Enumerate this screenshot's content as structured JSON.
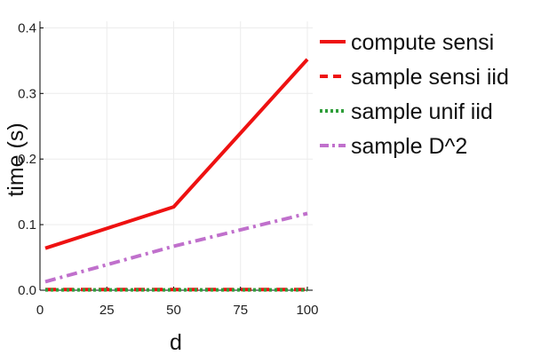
{
  "chart_data": {
    "type": "line",
    "xlabel": "d",
    "ylabel": "time (s)",
    "xlim": [
      0,
      102
    ],
    "ylim": [
      0,
      0.41
    ],
    "x_ticks": [
      "0",
      "25",
      "50",
      "75",
      "100"
    ],
    "y_ticks": [
      "0.0",
      "0.1",
      "0.2",
      "0.3",
      "0.4"
    ],
    "grid": true,
    "legend_position": "right",
    "series": [
      {
        "name": "compute sensi",
        "color": "#ee1111",
        "dash": "solid",
        "x": [
          2,
          50,
          100
        ],
        "y": [
          0.064,
          0.127,
          0.352
        ]
      },
      {
        "name": "sample sensi iid",
        "color": "#ee1111",
        "dash": "dash",
        "x": [
          2,
          50,
          100
        ],
        "y": [
          0.001,
          0.001,
          0.001
        ]
      },
      {
        "name": "sample unif iid",
        "color": "#2f9e3a",
        "dash": "dot",
        "x": [
          2,
          50,
          100
        ],
        "y": [
          0.0005,
          0.0005,
          0.0005
        ]
      },
      {
        "name": "sample D^2",
        "color": "#c070cc",
        "dash": "dashdot",
        "x": [
          2,
          50,
          100
        ],
        "y": [
          0.013,
          0.067,
          0.117
        ]
      }
    ]
  }
}
